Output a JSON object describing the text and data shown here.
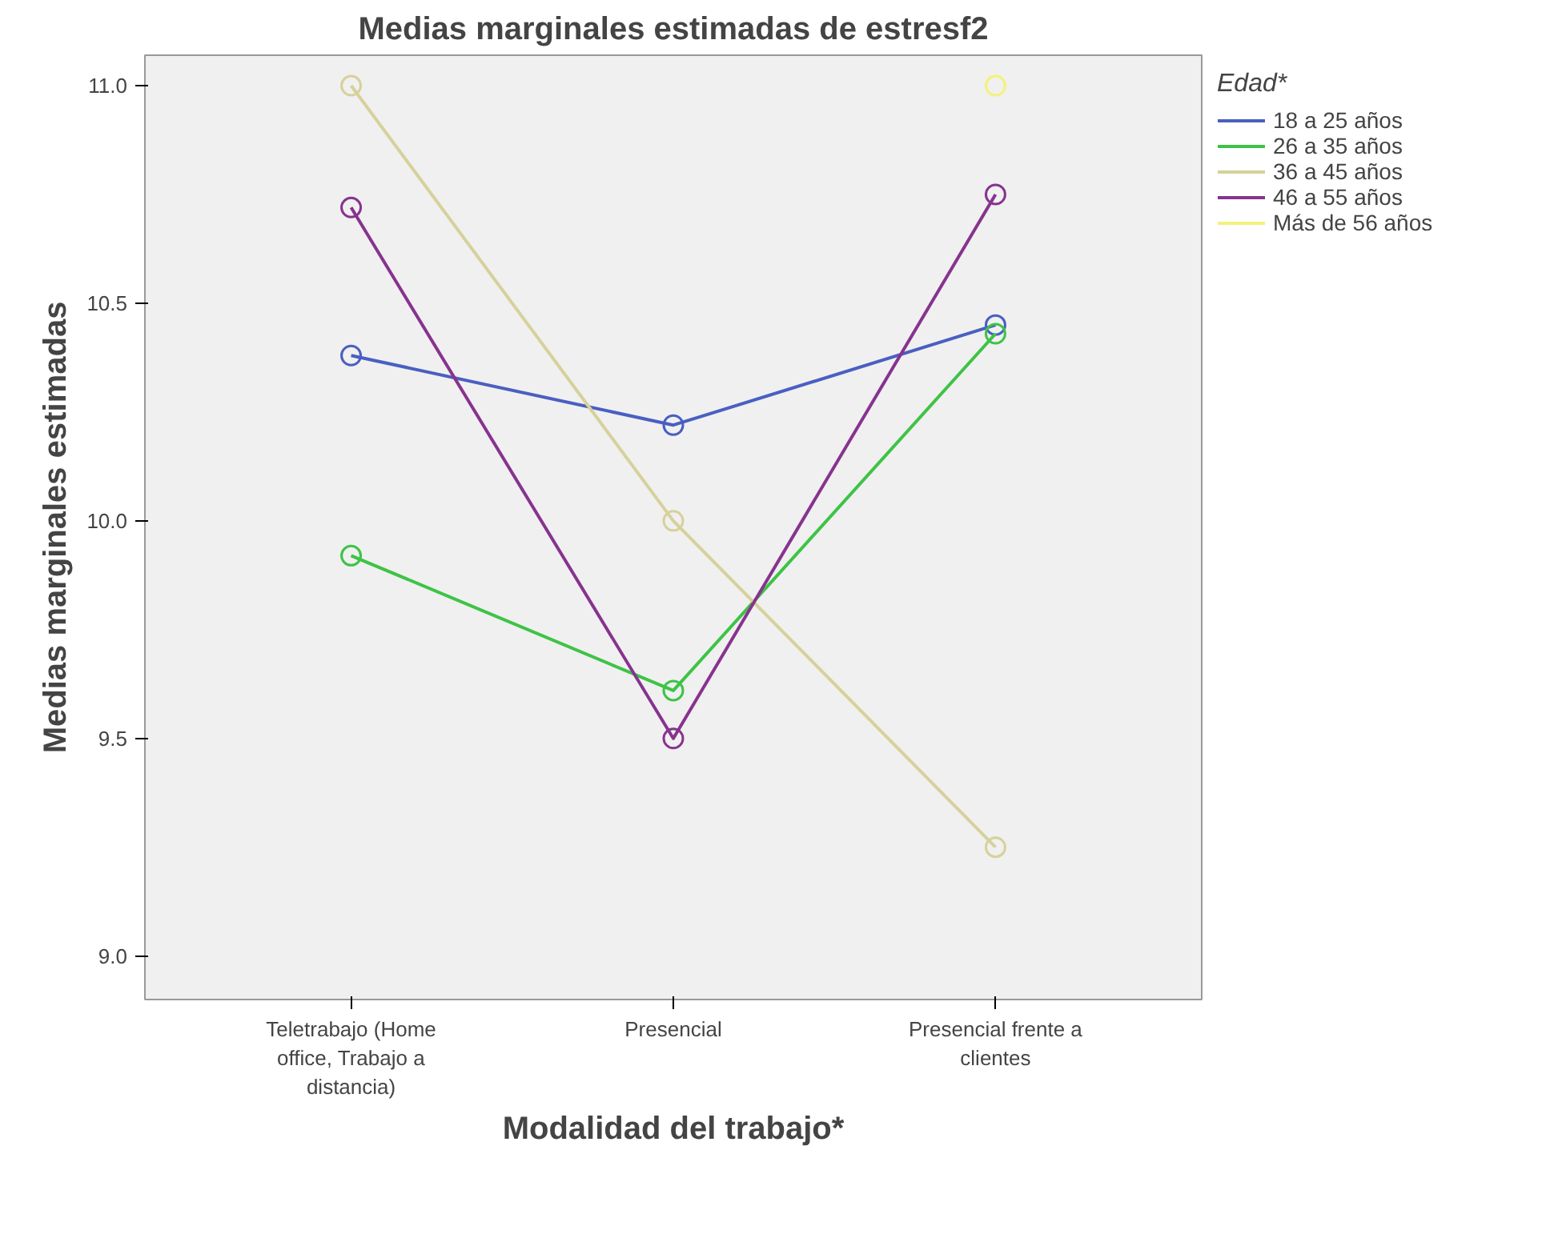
{
  "chart_data": {
    "type": "line",
    "title": "Medias marginales estimadas de estresf2",
    "xlabel": "Modalidad del trabajo*",
    "ylabel": "Medias marginales estimadas",
    "legend_title": "Edad*",
    "categories": [
      "Teletrabajo (Home office, Trabajo a distancia)",
      "Presencial",
      "Presencial frente a clientes"
    ],
    "series": [
      {
        "name": "18 a 25 años",
        "color": "#4a5fc1",
        "values": [
          10.38,
          10.22,
          10.45
        ]
      },
      {
        "name": "26 a 35 años",
        "color": "#3ec346",
        "values": [
          9.92,
          9.61,
          10.43
        ]
      },
      {
        "name": "36 a 45 años",
        "color": "#d6d19b",
        "values": [
          11.0,
          10.0,
          9.25
        ]
      },
      {
        "name": "46 a 55 años",
        "color": "#87338f",
        "values": [
          10.72,
          9.5,
          10.75
        ]
      },
      {
        "name": "Más de 56 años",
        "color": "#f2f27a",
        "values": [
          null,
          null,
          11.0
        ]
      }
    ],
    "ylim": [
      8.9,
      11.07
    ],
    "yticks": [
      {
        "value": 9.0,
        "label": "9.0"
      },
      {
        "value": 9.5,
        "label": "9.5"
      },
      {
        "value": 10.0,
        "label": "10.0"
      },
      {
        "value": 10.5,
        "label": "10.5"
      },
      {
        "value": 11.0,
        "label": "11.0"
      }
    ],
    "legend": "right",
    "marker": "circle",
    "line_style": "solid"
  }
}
